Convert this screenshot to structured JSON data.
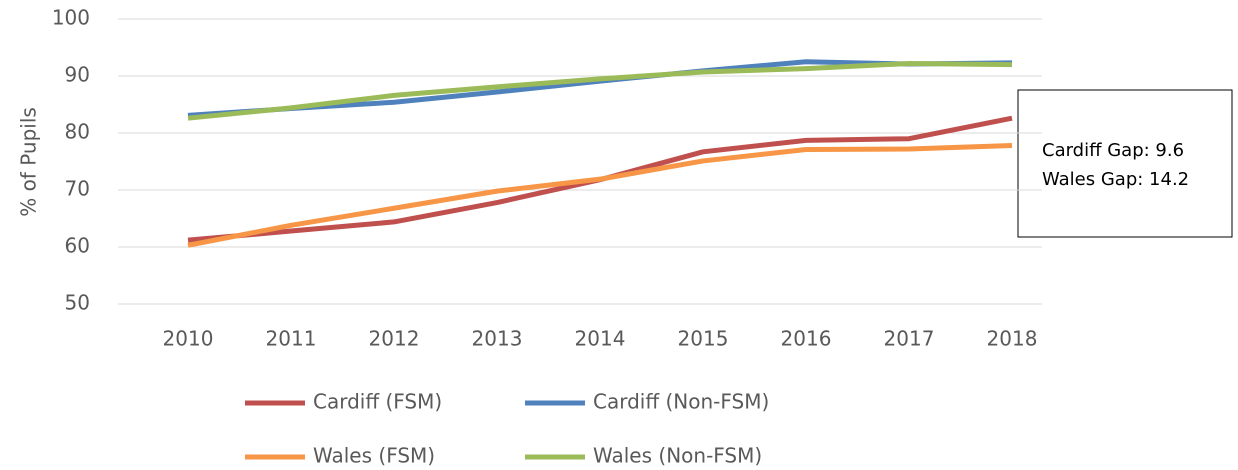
{
  "chart_data": {
    "type": "line",
    "y_label": "% of Pupils",
    "categories": [
      "2010",
      "2011",
      "2012",
      "2013",
      "2014",
      "2015",
      "2016",
      "2017",
      "2018"
    ],
    "series": [
      {
        "name": "Cardiff (FSM)",
        "color": "#c0504d",
        "values": [
          61.2,
          62.8,
          64.4,
          67.8,
          71.8,
          76.7,
          78.7,
          79.0,
          82.6
        ]
      },
      {
        "name": "Cardiff (Non-FSM)",
        "color": "#4f81bd",
        "values": [
          83.1,
          84.3,
          85.4,
          87.2,
          89.1,
          90.9,
          92.5,
          92.1,
          92.3
        ]
      },
      {
        "name": "Wales (FSM)",
        "color": "#f79646",
        "values": [
          60.3,
          63.8,
          66.8,
          69.8,
          71.9,
          75.1,
          77.1,
          77.2,
          77.8
        ]
      },
      {
        "name": "Wales (Non-FSM)",
        "color": "#9bbb59",
        "values": [
          82.6,
          84.4,
          86.6,
          88.1,
          89.5,
          90.7,
          91.3,
          92.2,
          92.0
        ]
      }
    ],
    "annotations": [
      "Cardiff Gap: 9.6",
      "Wales Gap: 14.2"
    ],
    "ylim": [
      50,
      100
    ],
    "yticks": [
      50,
      60,
      70,
      80,
      90,
      100
    ],
    "grid": true,
    "legend": "bottom"
  }
}
